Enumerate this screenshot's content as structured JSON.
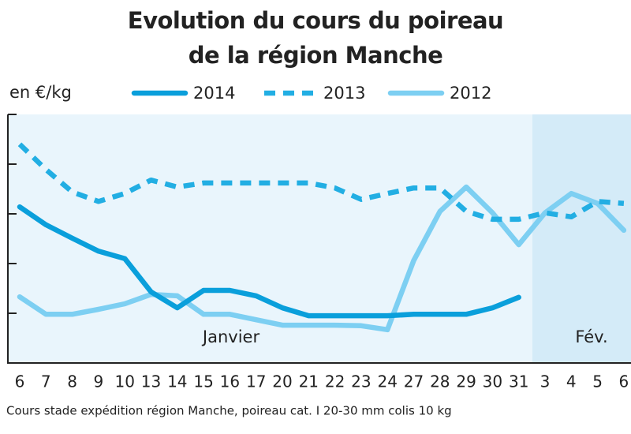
{
  "chart_data": {
    "type": "line",
    "title": [
      "Evolution du cours du poireau",
      "de la région Manche"
    ],
    "y_label": "en €/kg",
    "note": "Cours stade expédition région Manche, poireau cat. I 20-30 mm colis 10 kg",
    "annotations": [
      "Janvier",
      "Fév."
    ],
    "categories": [
      "6",
      "7",
      "8",
      "9",
      "10",
      "13",
      "14",
      "15",
      "16",
      "17",
      "20",
      "21",
      "22",
      "23",
      "24",
      "27",
      "28",
      "29",
      "30",
      "31",
      "3",
      "4",
      "5",
      "6"
    ],
    "series": [
      {
        "name": "2014",
        "color": "#0a9fdb",
        "line_style": "solid",
        "values": [
          3.14,
          2.78,
          2.51,
          2.25,
          2.1,
          1.43,
          1.11,
          1.46,
          1.46,
          1.35,
          1.11,
          0.95,
          0.95,
          0.95,
          0.95,
          0.98,
          0.98,
          0.98,
          1.11,
          1.32,
          null,
          null,
          null,
          null
        ]
      },
      {
        "name": "2013",
        "color": "#22aee3",
        "line_style": "dashed",
        "values": [
          4.4,
          3.89,
          3.44,
          3.25,
          3.41,
          3.68,
          3.54,
          3.62,
          3.62,
          3.62,
          3.62,
          3.62,
          3.52,
          3.29,
          3.41,
          3.52,
          3.52,
          3.05,
          2.89,
          2.89,
          3.02,
          2.94,
          3.25,
          3.21
        ]
      },
      {
        "name": "2012",
        "color": "#7dcff2",
        "line_style": "solid",
        "values": [
          1.33,
          0.98,
          0.98,
          1.08,
          1.19,
          1.38,
          1.35,
          0.98,
          0.98,
          0.87,
          0.76,
          0.76,
          0.76,
          0.75,
          0.67,
          2.06,
          3.05,
          3.54,
          3.02,
          2.38,
          3.02,
          3.41,
          3.21,
          2.67
        ]
      }
    ],
    "ylim": [
      0,
      5
    ],
    "yticks": [
      0,
      1,
      2,
      3,
      4,
      5
    ]
  }
}
